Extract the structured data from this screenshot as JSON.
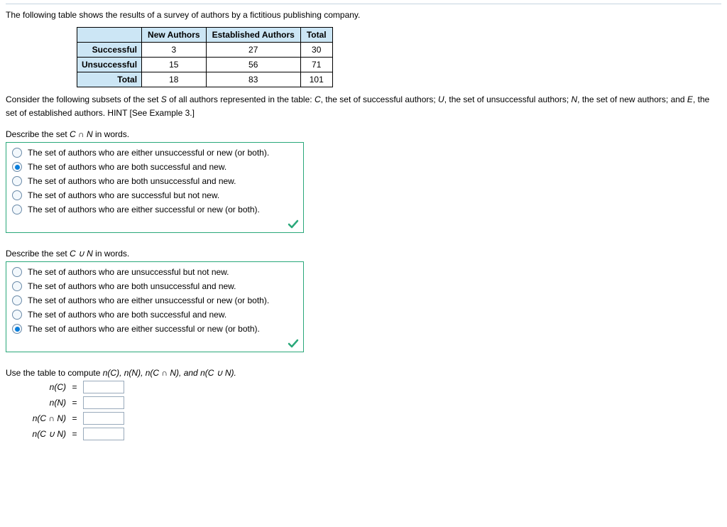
{
  "intro": "The following table shows the results of a survey of authors by a fictitious publishing company.",
  "table": {
    "col_headers": [
      "",
      "New Authors",
      "Established Authors",
      "Total"
    ],
    "rows": [
      {
        "label": "Successful",
        "cells": [
          "3",
          "27",
          "30"
        ]
      },
      {
        "label": "Unsuccessful",
        "cells": [
          "15",
          "56",
          "71"
        ]
      },
      {
        "label": "Total",
        "cells": [
          "18",
          "83",
          "101"
        ]
      }
    ],
    "header_bg": "#cce6f5"
  },
  "explain_parts": {
    "p1": "Consider the following subsets of the set ",
    "S": "S",
    "p2": " of all authors represented in the table: ",
    "C": "C",
    "p3": ", the set of successful authors; ",
    "U": "U",
    "p4": ", the set of unsuccessful authors; ",
    "N": "N",
    "p5": ", the set of new authors; and ",
    "E": "E",
    "p6": ", the set of established authors. HINT [See Example 3.]"
  },
  "q1": {
    "prompt_pre": "Describe the set ",
    "prompt_mid": "C ∩ N",
    "prompt_post": " in words.",
    "options": [
      "The set of authors who are either unsuccessful or new (or both).",
      "The set of authors who are both successful and new.",
      "The set of authors who are both unsuccessful and new.",
      "The set of authors who are successful but not new.",
      "The set of authors who are either successful or new (or both)."
    ],
    "selected": 1
  },
  "q2": {
    "prompt_pre": "Describe the set ",
    "prompt_mid": "C ∪ N",
    "prompt_post": " in words.",
    "options": [
      "The set of authors who are unsuccessful but not new.",
      "The set of authors who are both unsuccessful and new.",
      "The set of authors who are either unsuccessful or new (or both).",
      "The set of authors who are both successful and new.",
      "The set of authors who are either successful or new (or both)."
    ],
    "selected": 4
  },
  "compute": {
    "intro_pre": "Use the table to compute ",
    "intro_terms": "n(C), n(N), n(C ∩ N), and n(C ∪ N).",
    "rows": [
      {
        "label": "n(C)"
      },
      {
        "label": "n(N)"
      },
      {
        "label": "n(C ∩ N)"
      },
      {
        "label": "n(C ∪ N)"
      }
    ],
    "eq": "="
  },
  "colors": {
    "box_border": "#2aa87a",
    "check": "#2aa87a",
    "radio_fill": "#0a7edb"
  }
}
